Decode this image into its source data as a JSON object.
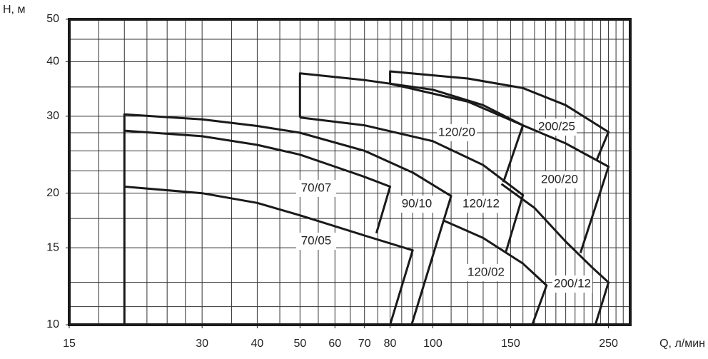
{
  "chart_data": {
    "type": "line",
    "log_x": true,
    "log_y": true,
    "grid": true,
    "color": "#1a1a1a",
    "y_label": "H, м",
    "x_label": "Q, л/мин",
    "xlim": [
      15,
      280
    ],
    "ylim": [
      10,
      50
    ],
    "xticks": [
      15,
      30,
      40,
      50,
      60,
      70,
      80,
      100,
      150,
      250
    ],
    "yticks": [
      10,
      15,
      20,
      30,
      40,
      50
    ],
    "xgrid": [
      17.5,
      20,
      22.5,
      25,
      27.5,
      30,
      35,
      40,
      45,
      50,
      55,
      60,
      65,
      70,
      75,
      80,
      85,
      90,
      95,
      100,
      110,
      120,
      130,
      140,
      150,
      160,
      170,
      180,
      190,
      200,
      210,
      220,
      230,
      240,
      250,
      260,
      270
    ],
    "ygrid": [
      11,
      12.5,
      15,
      17.5,
      20,
      22.5,
      25,
      27.5,
      30,
      35,
      40,
      45
    ],
    "series": [
      {
        "name": "70/05",
        "x": [
          20,
          30,
          40,
          50,
          70,
          90,
          80
        ],
        "y": [
          20.7,
          20,
          19,
          17.8,
          16,
          14.8,
          10
        ]
      },
      {
        "name": "70/07",
        "x": [
          20,
          30,
          40,
          50,
          60,
          70,
          80,
          74.5
        ],
        "y": [
          27.8,
          27,
          25.8,
          24.5,
          23,
          21.8,
          20.7,
          16.2
        ]
      },
      {
        "name": "90/10",
        "x": [
          20,
          20,
          30,
          40,
          50,
          70,
          90,
          110,
          89.5
        ],
        "y": [
          10,
          30.3,
          29.5,
          28.5,
          27.5,
          25,
          22.3,
          19.7,
          10
        ]
      },
      {
        "name": "120/20",
        "x": [
          50,
          50,
          70,
          100,
          130,
          160,
          144.5
        ],
        "y": [
          29.8,
          37.6,
          36.3,
          34.5,
          31.8,
          28.6,
          21.2
        ]
      },
      {
        "name": "120/12",
        "x": [
          50,
          70,
          100,
          130,
          160,
          146.5
        ],
        "y": [
          29.8,
          28.6,
          26.3,
          23.2,
          19.8,
          14.7
        ]
      },
      {
        "name": "120/02",
        "x": [
          106,
          130,
          160,
          181,
          168
        ],
        "y": [
          17.3,
          15.8,
          13.8,
          12.3,
          10
        ]
      },
      {
        "name": "200/25",
        "x": [
          80,
          80,
          120,
          160,
          200,
          250,
          235
        ],
        "y": [
          35.6,
          38,
          36.6,
          34.8,
          31.8,
          27.6,
          23.8
        ]
      },
      {
        "name": "200/20",
        "x": [
          80,
          120,
          160,
          200,
          250,
          216
        ],
        "y": [
          35.6,
          32.4,
          28.6,
          26,
          23,
          14.6
        ]
      },
      {
        "name": "200/12",
        "x": [
          143,
          170,
          200,
          230,
          250,
          233.5
        ],
        "y": [
          21,
          18.5,
          15.5,
          13.5,
          12.5,
          10
        ]
      }
    ]
  }
}
